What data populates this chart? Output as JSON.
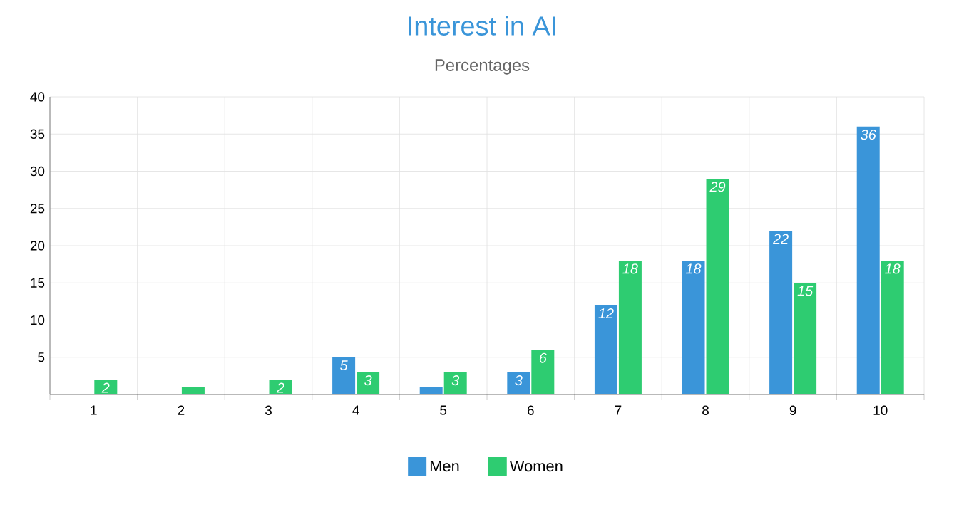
{
  "chart_data": {
    "type": "bar",
    "title": "Interest in AI",
    "subtitle": "Percentages",
    "categories": [
      "1",
      "2",
      "3",
      "4",
      "5",
      "6",
      "7",
      "8",
      "9",
      "10"
    ],
    "series": [
      {
        "name": "Men",
        "color": "#3a95d9",
        "values": [
          0,
          0,
          0,
          5,
          1,
          3,
          12,
          18,
          22,
          36
        ],
        "value_labels": [
          null,
          null,
          null,
          "5",
          null,
          "3",
          "12",
          "18",
          "22",
          "36"
        ]
      },
      {
        "name": "Women",
        "color": "#2ecc71",
        "values": [
          2,
          1,
          2,
          3,
          3,
          6,
          18,
          29,
          15,
          18
        ],
        "value_labels": [
          "2",
          null,
          "2",
          "3",
          "3",
          "6",
          "18",
          "29",
          "15",
          "18"
        ]
      }
    ],
    "ylim": [
      0,
      40
    ],
    "yticks": [
      {
        "value": 0,
        "label": null
      },
      5,
      10,
      15,
      20,
      25,
      30,
      35,
      40
    ],
    "grid": true,
    "legend": "bottom"
  }
}
